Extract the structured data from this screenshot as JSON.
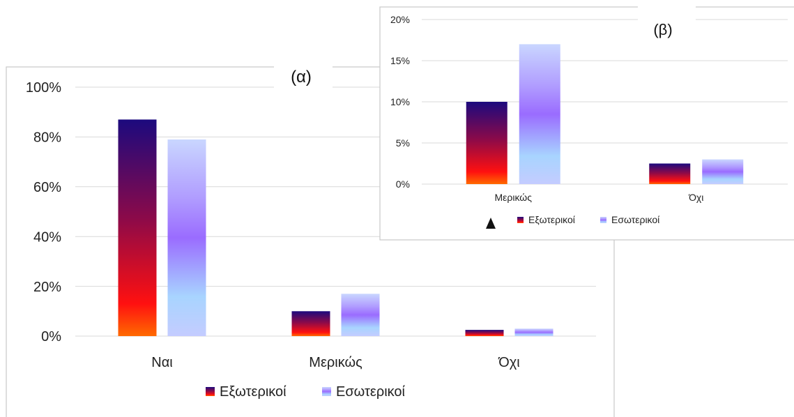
{
  "colors": {
    "external_top": "#1c0a7e",
    "external_mid": "#8a0a4a",
    "external_low": "#ff1010",
    "external_base": "#ff6a00",
    "internal_top": "#c9d6ff",
    "internal_upper": "#b09cff",
    "internal_mid": "#9a6cff",
    "internal_low": "#a8d4ff",
    "internal_base": "#c4ccff",
    "grid": "#d9d9d9",
    "frame": "#c8c8c8",
    "text": "#222222"
  },
  "chart_data": [
    {
      "id": "a",
      "type": "bar",
      "title": "(α)",
      "categories": [
        "Ναι",
        "Μερικώς",
        "Όχι"
      ],
      "series": [
        {
          "name": "Εξωτερικοί",
          "values": [
            87,
            10,
            2.5
          ]
        },
        {
          "name": "Εσωτερικοί",
          "values": [
            79,
            17,
            3
          ]
        }
      ],
      "ylim": [
        0,
        100
      ],
      "yticks": [
        0,
        20,
        40,
        60,
        80,
        100
      ],
      "ytick_labels": [
        "0%",
        "20%",
        "40%",
        "60%",
        "80%",
        "100%"
      ],
      "grid": true,
      "legend": "bottom"
    },
    {
      "id": "b",
      "type": "bar",
      "title": "(β)",
      "categories": [
        "Μερικώς",
        "Όχι"
      ],
      "series": [
        {
          "name": "Εξωτερικοί",
          "values": [
            10,
            2.5
          ]
        },
        {
          "name": "Εσωτερικοί",
          "values": [
            17,
            3
          ]
        }
      ],
      "ylim": [
        0,
        20
      ],
      "yticks": [
        0,
        5,
        10,
        15,
        20
      ],
      "ytick_labels": [
        "0%",
        "5%",
        "10%",
        "15%",
        "20%"
      ],
      "grid": true,
      "legend": "bottom"
    }
  ]
}
